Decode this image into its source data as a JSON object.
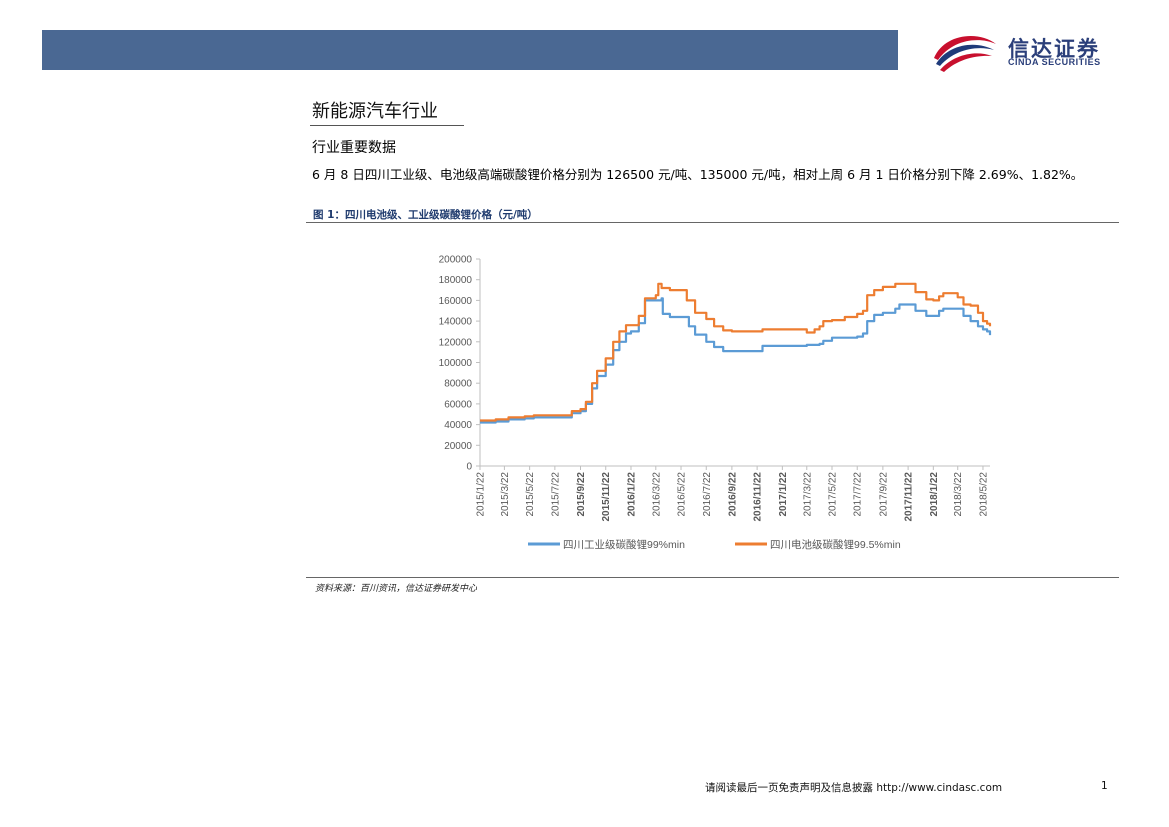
{
  "header": {
    "brand_cn": "信达证券",
    "brand_en": "CINDA SECURITIES",
    "bar_color": "#4a6893"
  },
  "section": {
    "title": "新能源汽车行业",
    "subtitle": "行业重要数据",
    "paragraph": "6 月 8 日四川工业级、电池级高端碳酸锂价格分别为 126500 元/吨、135000 元/吨，相对上周 6 月 1 日价格分别下降 2.69%、1.82%。"
  },
  "figure": {
    "caption": "图 1：四川电池级、工业级碳酸锂价格（元/吨）",
    "source": "资料来源：百川资讯，信达证券研发中心"
  },
  "footer": {
    "disclaimer": "请阅读最后一页免责声明及信息披露  http://www.cindasc.com",
    "page": "1"
  },
  "chart_data": {
    "type": "line",
    "title": "",
    "xlabel": "",
    "ylabel": "",
    "ylim": [
      0,
      200000
    ],
    "yticks": [
      "200000",
      "180000",
      "160000",
      "140000",
      "120000",
      "100000",
      "80000",
      "60000",
      "40000",
      "20000",
      "0"
    ],
    "xlim": [
      "2015/1/22",
      "2018/6/8"
    ],
    "xticks": [
      "2015/1/22",
      "2015/3/22",
      "2015/5/22",
      "2015/7/22",
      "2015/9/22",
      "2015/11/22",
      "2016/1/22",
      "2016/3/22",
      "2016/5/22",
      "2016/7/22",
      "2016/9/22",
      "2016/11/22",
      "2017/1/22",
      "2017/3/22",
      "2017/5/22",
      "2017/7/22",
      "2017/9/22",
      "2017/11/22",
      "2018/1/22",
      "2018/3/22",
      "2018/5/22"
    ],
    "bold_xticks": [
      "2015/9/22",
      "2015/11/22",
      "2016/1/22",
      "2016/9/22",
      "2016/11/22",
      "2017/1/22",
      "2017/11/22",
      "2018/1/22"
    ],
    "legend_position": "bottom",
    "grid": false,
    "series": [
      {
        "name": "四川工业级碳酸锂99%min",
        "color": "#5b9bd5",
        "points": [
          [
            "2015/1/22",
            42000
          ],
          [
            "2015/3/1",
            43000
          ],
          [
            "2015/4/1",
            45000
          ],
          [
            "2015/5/10",
            46000
          ],
          [
            "2015/6/1",
            47000
          ],
          [
            "2015/8/20",
            47000
          ],
          [
            "2015/9/1",
            51000
          ],
          [
            "2015/9/22",
            53000
          ],
          [
            "2015/10/5",
            60000
          ],
          [
            "2015/10/20",
            75000
          ],
          [
            "2015/11/1",
            87000
          ],
          [
            "2015/11/22",
            98000
          ],
          [
            "2015/12/10",
            112000
          ],
          [
            "2015/12/25",
            120000
          ],
          [
            "2016/1/10",
            128000
          ],
          [
            "2016/1/22",
            130000
          ],
          [
            "2016/2/10",
            138000
          ],
          [
            "2016/2/25",
            160000
          ],
          [
            "2016/3/22",
            160000
          ],
          [
            "2016/4/5",
            162000
          ],
          [
            "2016/4/8",
            147000
          ],
          [
            "2016/4/25",
            144000
          ],
          [
            "2016/5/22",
            144000
          ],
          [
            "2016/6/10",
            135000
          ],
          [
            "2016/6/25",
            127000
          ],
          [
            "2016/7/22",
            120000
          ],
          [
            "2016/8/10",
            115000
          ],
          [
            "2016/9/1",
            111000
          ],
          [
            "2016/9/22",
            111000
          ],
          [
            "2016/11/22",
            111000
          ],
          [
            "2016/12/5",
            116000
          ],
          [
            "2017/1/22",
            116000
          ],
          [
            "2017/3/22",
            117000
          ],
          [
            "2017/4/22",
            118000
          ],
          [
            "2017/5/1",
            121000
          ],
          [
            "2017/5/22",
            124000
          ],
          [
            "2017/6/22",
            124000
          ],
          [
            "2017/7/22",
            125000
          ],
          [
            "2017/8/5",
            128000
          ],
          [
            "2017/8/15",
            140000
          ],
          [
            "2017/9/1",
            146000
          ],
          [
            "2017/9/22",
            148000
          ],
          [
            "2017/10/22",
            152000
          ],
          [
            "2017/11/1",
            156000
          ],
          [
            "2017/11/22",
            156000
          ],
          [
            "2017/12/10",
            150000
          ],
          [
            "2018/1/5",
            145000
          ],
          [
            "2018/1/22",
            145000
          ],
          [
            "2018/2/5",
            150000
          ],
          [
            "2018/2/15",
            152000
          ],
          [
            "2018/3/22",
            152000
          ],
          [
            "2018/4/5",
            145000
          ],
          [
            "2018/4/22",
            140000
          ],
          [
            "2018/5/10",
            135000
          ],
          [
            "2018/5/22",
            132000
          ],
          [
            "2018/6/1",
            130000
          ],
          [
            "2018/6/8",
            126500
          ]
        ]
      },
      {
        "name": "四川电池级碳酸锂99.5%min",
        "color": "#ed7d31",
        "points": [
          [
            "2015/1/22",
            44000
          ],
          [
            "2015/3/1",
            45000
          ],
          [
            "2015/4/1",
            47000
          ],
          [
            "2015/5/10",
            48000
          ],
          [
            "2015/6/1",
            49000
          ],
          [
            "2015/8/20",
            49000
          ],
          [
            "2015/9/1",
            53000
          ],
          [
            "2015/9/22",
            55000
          ],
          [
            "2015/10/5",
            62000
          ],
          [
            "2015/10/20",
            80000
          ],
          [
            "2015/11/1",
            92000
          ],
          [
            "2015/11/22",
            104000
          ],
          [
            "2015/12/10",
            120000
          ],
          [
            "2015/12/25",
            130000
          ],
          [
            "2016/1/10",
            136000
          ],
          [
            "2016/1/22",
            136000
          ],
          [
            "2016/2/10",
            145000
          ],
          [
            "2016/2/25",
            162000
          ],
          [
            "2016/3/22",
            165000
          ],
          [
            "2016/3/28",
            176000
          ],
          [
            "2016/4/5",
            172000
          ],
          [
            "2016/4/25",
            170000
          ],
          [
            "2016/5/22",
            170000
          ],
          [
            "2016/6/5",
            160000
          ],
          [
            "2016/6/25",
            148000
          ],
          [
            "2016/7/22",
            142000
          ],
          [
            "2016/8/10",
            135000
          ],
          [
            "2016/9/1",
            131000
          ],
          [
            "2016/9/22",
            130000
          ],
          [
            "2016/11/22",
            130000
          ],
          [
            "2016/12/5",
            132000
          ],
          [
            "2017/1/22",
            132000
          ],
          [
            "2017/3/22",
            129000
          ],
          [
            "2017/4/10",
            132000
          ],
          [
            "2017/4/22",
            135000
          ],
          [
            "2017/5/1",
            140000
          ],
          [
            "2017/5/22",
            141000
          ],
          [
            "2017/6/22",
            144000
          ],
          [
            "2017/7/22",
            147000
          ],
          [
            "2017/8/5",
            150000
          ],
          [
            "2017/8/15",
            165000
          ],
          [
            "2017/9/1",
            170000
          ],
          [
            "2017/9/22",
            173000
          ],
          [
            "2017/10/22",
            176000
          ],
          [
            "2017/11/22",
            176000
          ],
          [
            "2017/12/10",
            168000
          ],
          [
            "2018/1/5",
            161000
          ],
          [
            "2018/1/22",
            160000
          ],
          [
            "2018/2/5",
            164000
          ],
          [
            "2018/2/15",
            167000
          ],
          [
            "2018/3/22",
            163000
          ],
          [
            "2018/4/5",
            156000
          ],
          [
            "2018/4/22",
            155000
          ],
          [
            "2018/5/10",
            148000
          ],
          [
            "2018/5/22",
            140000
          ],
          [
            "2018/6/1",
            137500
          ],
          [
            "2018/6/8",
            135000
          ]
        ]
      }
    ]
  }
}
